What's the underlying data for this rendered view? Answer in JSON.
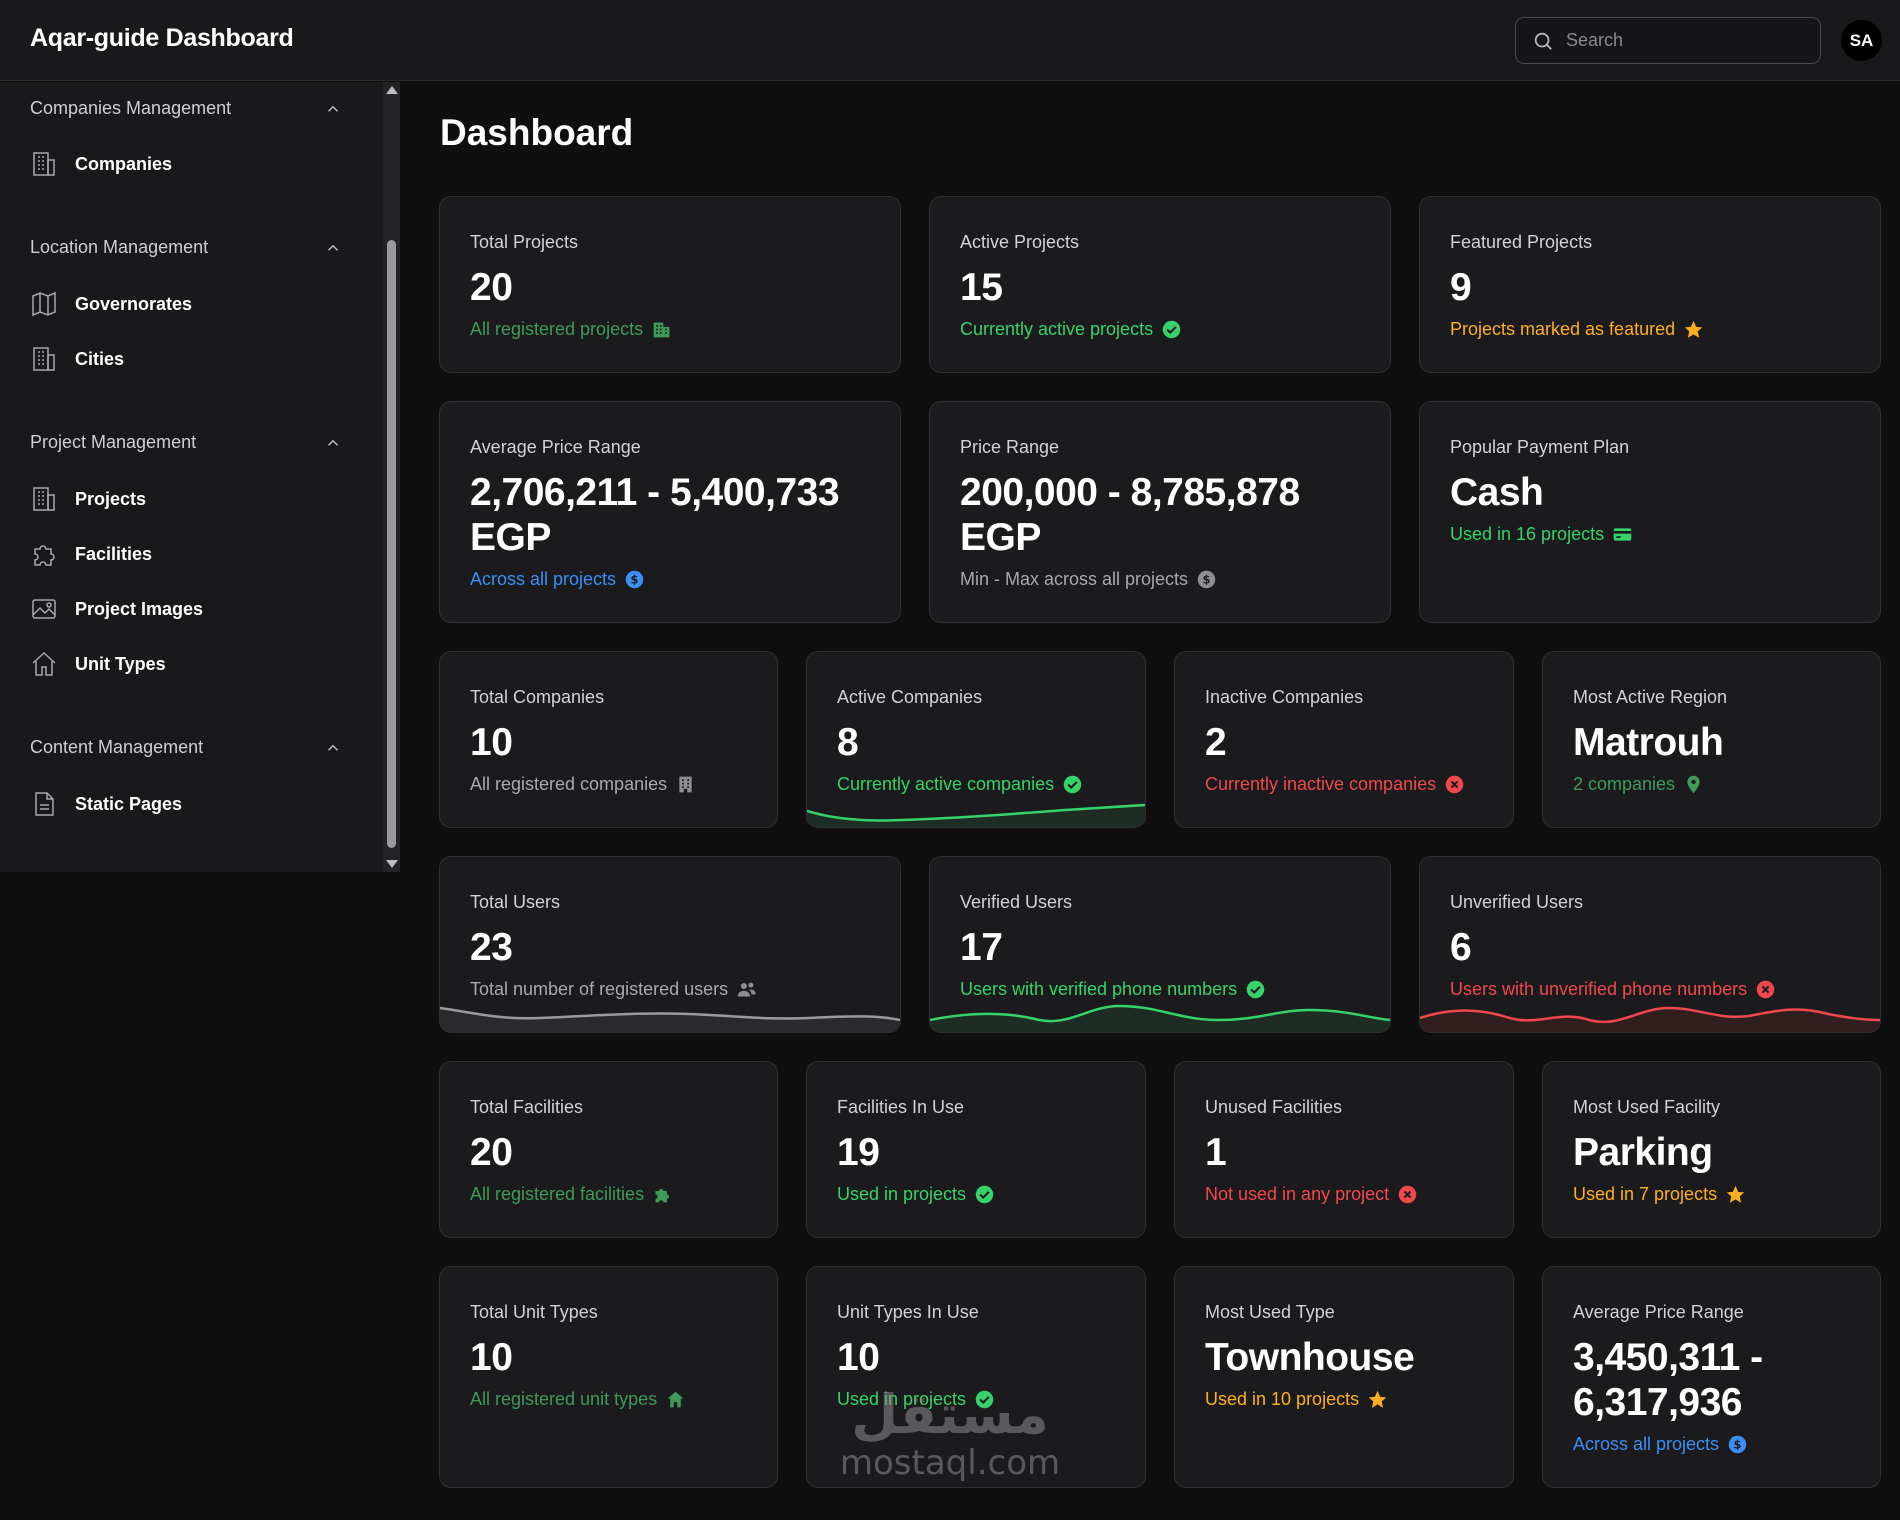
{
  "app": {
    "title": "Aqar-guide Dashboard"
  },
  "header": {
    "search_placeholder": "Search",
    "avatar_initials": "SA"
  },
  "sidebar": {
    "sections": [
      {
        "title": "Companies Management",
        "items": [
          {
            "label": "Companies",
            "icon": "building-icon"
          }
        ]
      },
      {
        "title": "Location Management",
        "items": [
          {
            "label": "Governorates",
            "icon": "map-icon"
          },
          {
            "label": "Cities",
            "icon": "building-icon"
          }
        ]
      },
      {
        "title": "Project Management",
        "items": [
          {
            "label": "Projects",
            "icon": "building-icon"
          },
          {
            "label": "Facilities",
            "icon": "puzzle-icon"
          },
          {
            "label": "Project Images",
            "icon": "image-icon"
          },
          {
            "label": "Unit Types",
            "icon": "home-icon"
          }
        ]
      },
      {
        "title": "Content Management",
        "items": [
          {
            "label": "Static Pages",
            "icon": "document-icon"
          }
        ]
      }
    ]
  },
  "page": {
    "title": "Dashboard"
  },
  "colors": {
    "green": "#35d36a",
    "green_dim": "#3f9a5b",
    "orange": "#ffae1f",
    "blue": "#3b8ff3",
    "red": "#f0484e",
    "gray": "#a9a9ad"
  },
  "cards": {
    "total_projects": {
      "label": "Total Projects",
      "value": "20",
      "sub": "All registered projects",
      "icon": "building-icon"
    },
    "active_projects": {
      "label": "Active Projects",
      "value": "15",
      "sub": "Currently active projects",
      "icon": "check-circle-icon"
    },
    "featured_projects": {
      "label": "Featured Projects",
      "value": "9",
      "sub": "Projects marked as featured",
      "icon": "star-icon"
    },
    "avg_price_range": {
      "label": "Average Price Range",
      "value_line1": "2,706,211 - 5,400,733",
      "value_line2": "EGP",
      "sub": "Across all projects",
      "icon": "dollar-circle-icon"
    },
    "price_range": {
      "label": "Price Range",
      "value_line1": "200,000 - 8,785,878",
      "value_line2": "EGP",
      "sub": "Min - Max across all projects",
      "icon": "dollar-circle-icon"
    },
    "payment_plan": {
      "label": "Popular Payment Plan",
      "value": "Cash",
      "sub": "Used in 16 projects",
      "icon": "credit-card-icon"
    },
    "total_companies": {
      "label": "Total Companies",
      "value": "10",
      "sub": "All registered companies",
      "icon": "office-building-icon"
    },
    "active_companies": {
      "label": "Active Companies",
      "value": "8",
      "sub": "Currently active companies",
      "icon": "check-circle-icon"
    },
    "inactive_companies": {
      "label": "Inactive Companies",
      "value": "2",
      "sub": "Currently inactive companies",
      "icon": "x-circle-icon"
    },
    "most_active_region": {
      "label": "Most Active Region",
      "value": "Matrouh",
      "sub": "2 companies",
      "icon": "map-pin-icon"
    },
    "total_users": {
      "label": "Total Users",
      "value": "23",
      "sub": "Total number of registered users",
      "icon": "users-icon"
    },
    "verified_users": {
      "label": "Verified Users",
      "value": "17",
      "sub": "Users with verified phone numbers",
      "icon": "check-circle-icon"
    },
    "unverified_users": {
      "label": "Unverified Users",
      "value": "6",
      "sub": "Users with unverified phone numbers",
      "icon": "x-circle-icon"
    },
    "total_facilities": {
      "label": "Total Facilities",
      "value": "20",
      "sub": "All registered facilities",
      "icon": "puzzle-icon"
    },
    "facilities_in_use": {
      "label": "Facilities In Use",
      "value": "19",
      "sub": "Used in projects",
      "icon": "check-circle-icon"
    },
    "unused_facilities": {
      "label": "Unused Facilities",
      "value": "1",
      "sub": "Not used in any project",
      "icon": "x-circle-icon"
    },
    "most_used_facility": {
      "label": "Most Used Facility",
      "value": "Parking",
      "sub": "Used in 7 projects",
      "icon": "star-icon"
    },
    "total_unit_types": {
      "label": "Total Unit Types",
      "value": "10",
      "sub": "All registered unit types",
      "icon": "home-icon"
    },
    "unit_types_in_use": {
      "label": "Unit Types In Use",
      "value": "10",
      "sub": "Used in projects",
      "icon": "check-circle-icon"
    },
    "most_used_type": {
      "label": "Most Used Type",
      "value": "Townhouse",
      "sub": "Used in 10 projects",
      "icon": "star-icon"
    },
    "avg_price_range_units": {
      "label": "Average Price Range",
      "value_line1": "3,450,311 -",
      "value_line2": "6,317,936",
      "sub": "Across all projects",
      "icon": "dollar-circle-icon"
    }
  },
  "watermark": {
    "arabic": "مستقل",
    "latin": "mostaql.com"
  }
}
